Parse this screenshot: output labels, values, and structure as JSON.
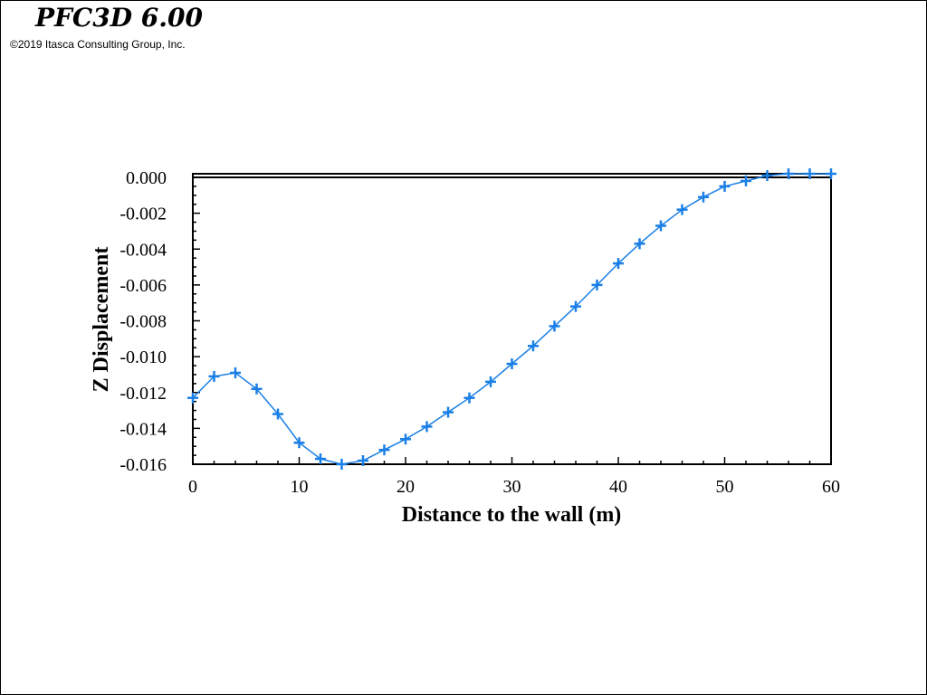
{
  "header": {
    "app_title": "PFC3D 6.00",
    "copyright": "©2019 Itasca Consulting Group, Inc."
  },
  "colors": {
    "series": "#1a7fe6",
    "axis": "#000000"
  },
  "chart_data": {
    "type": "line",
    "title": "",
    "xlabel": "Distance to the wall (m)",
    "ylabel": "Z Displacement",
    "xlim": [
      0,
      60
    ],
    "ylim": [
      -0.016,
      0.0
    ],
    "x_ticks": [
      0,
      10,
      20,
      30,
      40,
      50,
      60
    ],
    "x_tick_labels": [
      "0",
      "10",
      "20",
      "30",
      "40",
      "50",
      "60"
    ],
    "y_ticks": [
      0.0,
      -0.002,
      -0.004,
      -0.006,
      -0.008,
      -0.01,
      -0.012,
      -0.014,
      -0.016
    ],
    "y_tick_labels": [
      "0.000",
      "-0.002",
      "-0.004",
      "-0.006",
      "-0.008",
      "-0.010",
      "-0.012",
      "-0.014",
      "-0.016"
    ],
    "grid": false,
    "legend": "none",
    "marker": "plus",
    "series": [
      {
        "x": [
          0,
          2,
          4,
          6,
          8,
          10,
          12,
          14,
          16,
          18,
          20,
          22,
          24,
          26,
          28,
          30,
          32,
          34,
          36,
          38,
          40,
          42,
          44,
          46,
          48,
          50,
          52,
          54,
          56,
          58,
          60
        ],
        "values": [
          -0.0123,
          -0.0111,
          -0.0109,
          -0.0118,
          -0.0132,
          -0.0148,
          -0.0157,
          -0.016,
          -0.0158,
          -0.0152,
          -0.0146,
          -0.0139,
          -0.0131,
          -0.0123,
          -0.0114,
          -0.0104,
          -0.0094,
          -0.0083,
          -0.0072,
          -0.006,
          -0.0048,
          -0.0037,
          -0.0027,
          -0.0018,
          -0.0011,
          -0.0005,
          -0.0002,
          0.0001,
          0.0002,
          0.0002,
          0.0002
        ]
      }
    ]
  }
}
